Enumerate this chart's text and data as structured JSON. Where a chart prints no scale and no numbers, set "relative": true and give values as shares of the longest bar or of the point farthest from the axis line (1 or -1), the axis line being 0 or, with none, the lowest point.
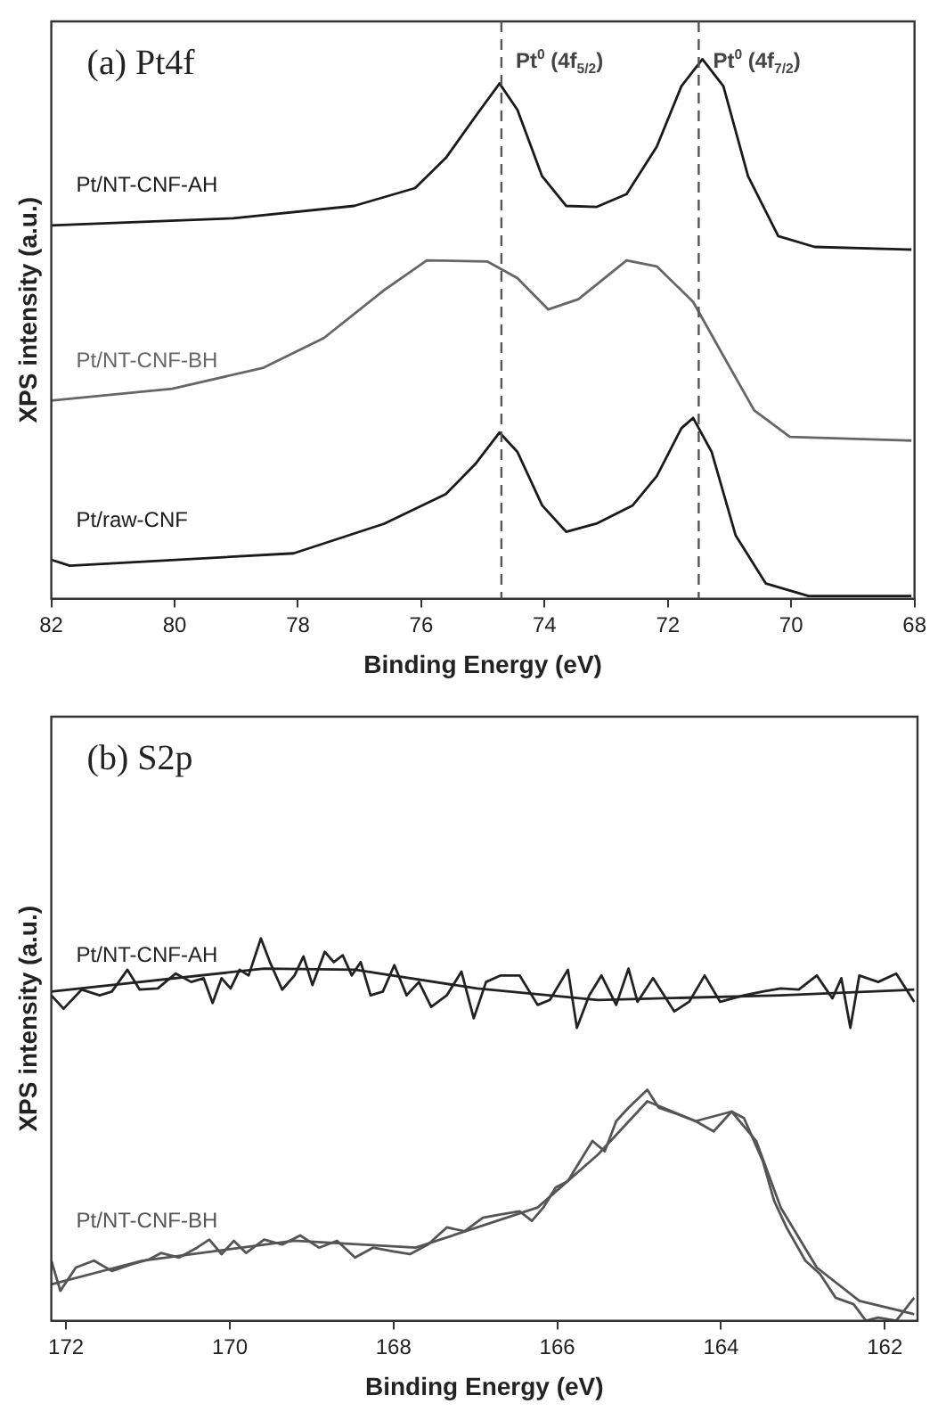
{
  "chart_data": [
    {
      "type": "line",
      "title": "(a) Pt4f",
      "xlabel": "Binding Energy (eV)",
      "ylabel": "XPS intensity (a.u.)",
      "relative": true,
      "xlim": [
        82,
        68
      ],
      "xticks": [
        82,
        80,
        78,
        76,
        74,
        72,
        70,
        68
      ],
      "grid": false,
      "legend": false,
      "marker": "none",
      "ref_lines": [
        {
          "axis": "x",
          "value": 74.7,
          "label": "Pt$^{0}$ (4f$_{5/2}$)",
          "line_style": "dashed",
          "color": "#555555"
        },
        {
          "axis": "x",
          "value": 71.5,
          "label": "Pt$^{0}$ (4f$_{7/2}$)",
          "line_style": "dashed",
          "color": "#555555"
        }
      ],
      "series": [
        {
          "name": "Pt/NT-CNF-AH",
          "color": "#1a1a1a",
          "x": [
            82,
            79.05,
            77.09,
            76.1,
            75.6,
            75.12,
            74.73,
            74.44,
            74.04,
            73.65,
            73.16,
            72.67,
            72.18,
            71.78,
            71.44,
            71.1,
            70.7,
            70.21,
            69.62,
            68.05
          ],
          "values": [
            0.692,
            0.705,
            0.728,
            0.761,
            0.817,
            0.894,
            0.955,
            0.906,
            0.783,
            0.728,
            0.726,
            0.75,
            0.838,
            0.95,
            1,
            0.95,
            0.783,
            0.672,
            0.652,
            0.647
          ]
        },
        {
          "name": "Pt/NT-CNF-BH",
          "color": "#666666",
          "x": [
            82,
            80.04,
            78.56,
            77.58,
            76.6,
            75.91,
            74.93,
            74.44,
            73.94,
            73.45,
            72.67,
            72.18,
            71.59,
            71.1,
            70.6,
            70.02,
            68.05
          ],
          "values": [
            0.367,
            0.389,
            0.428,
            0.483,
            0.572,
            0.627,
            0.625,
            0.594,
            0.536,
            0.555,
            0.627,
            0.616,
            0.55,
            0.45,
            0.349,
            0.3,
            0.293
          ]
        },
        {
          "name": "Pt/raw-CNF",
          "color": "#1a1a1a",
          "x": [
            82,
            81.7,
            78.07,
            76.6,
            75.6,
            75.12,
            74.73,
            74.44,
            74.04,
            73.65,
            73.16,
            72.57,
            72.18,
            71.78,
            71.59,
            71.29,
            70.9,
            70.41,
            69.72,
            68.05
          ],
          "values": [
            0.072,
            0.061,
            0.084,
            0.139,
            0.194,
            0.25,
            0.308,
            0.272,
            0.173,
            0.124,
            0.139,
            0.173,
            0.227,
            0.316,
            0.335,
            0.272,
            0.117,
            0.028,
            0.005,
            0.005
          ]
        }
      ]
    },
    {
      "type": "line",
      "title": "(b) S2p",
      "xlabel": "Binding Energy (eV)",
      "ylabel": "XPS intensity (a.u.)",
      "relative": true,
      "xlim": [
        172.18,
        161.6
      ],
      "xticks": [
        172,
        170,
        168,
        166,
        164,
        162
      ],
      "grid": false,
      "legend": false,
      "marker": "none",
      "series": [
        {
          "name": "Pt/NT-CNF-AH",
          "color": "#222222",
          "x": [
            172.18,
            172.03,
            171.81,
            171.59,
            171.44,
            171.25,
            171.1,
            170.88,
            170.66,
            170.47,
            170.32,
            170.21,
            170.1,
            169.99,
            169.88,
            169.77,
            169.62,
            169.51,
            169.36,
            169.21,
            169.1,
            168.99,
            168.84,
            168.73,
            168.62,
            168.51,
            168.4,
            168.28,
            168.13,
            167.99,
            167.84,
            167.69,
            167.54,
            167.35,
            167.17,
            167.02,
            166.87,
            166.69,
            166.46,
            166.24,
            166.09,
            165.87,
            165.76,
            165.61,
            165.46,
            165.28,
            165.13,
            165.02,
            164.83,
            164.57,
            164.39,
            164.2,
            164.01,
            163.72,
            163.49,
            163.27,
            163.05,
            162.83,
            162.64,
            162.53,
            162.42,
            162.31,
            162.08,
            161.86,
            161.64
          ],
          "values": [
            0.851,
            0.816,
            0.866,
            0.851,
            0.861,
            0.918,
            0.866,
            0.869,
            0.908,
            0.886,
            0.896,
            0.831,
            0.896,
            0.869,
            0.918,
            0.903,
            1,
            0.938,
            0.866,
            0.903,
            0.953,
            0.878,
            0.965,
            0.938,
            0.956,
            0.903,
            0.938,
            0.851,
            0.861,
            0.93,
            0.851,
            0.886,
            0.821,
            0.851,
            0.913,
            0.791,
            0.886,
            0.903,
            0.903,
            0.826,
            0.839,
            0.918,
            0.766,
            0.851,
            0.903,
            0.826,
            0.921,
            0.834,
            0.896,
            0.809,
            0.834,
            0.903,
            0.834,
            0.851,
            0.861,
            0.869,
            0.866,
            0.903,
            0.843,
            0.896,
            0.766,
            0.903,
            0.886,
            0.908,
            0.834
          ]
        },
        {
          "color": "#222222",
          "x": [
            172.18,
            169.58,
            168.47,
            166.98,
            165.5,
            163.27,
            161.64
          ],
          "values": [
            0.861,
            0.921,
            0.918,
            0.869,
            0.839,
            0.851,
            0.866
          ]
        },
        {
          "name": "Pt/NT-CNF-BH",
          "color": "#555555",
          "x": [
            172.18,
            172.07,
            171.88,
            171.66,
            171.44,
            171.21,
            170.99,
            170.84,
            170.62,
            170.4,
            170.25,
            170.1,
            169.95,
            169.8,
            169.58,
            169.36,
            169.14,
            168.91,
            168.69,
            168.47,
            168.25,
            168.02,
            167.8,
            167.58,
            167.35,
            167.13,
            166.91,
            166.69,
            166.46,
            166.31,
            166.17,
            166.02,
            165.87,
            165.72,
            165.57,
            165.42,
            165.28,
            165.13,
            164.9,
            164.76,
            164.53,
            164.31,
            164.09,
            163.87,
            163.72,
            163.49,
            163.35,
            163.2,
            162.97,
            162.79,
            162.6,
            162.38,
            162.23,
            162.08,
            161.86,
            161.64
          ],
          "values": [
            0.157,
            0.078,
            0.139,
            0.157,
            0.13,
            0.147,
            0.16,
            0.177,
            0.165,
            0.191,
            0.212,
            0.174,
            0.209,
            0.177,
            0.212,
            0.199,
            0.223,
            0.191,
            0.209,
            0.165,
            0.191,
            0.182,
            0.174,
            0.199,
            0.244,
            0.234,
            0.269,
            0.278,
            0.286,
            0.261,
            0.296,
            0.348,
            0.365,
            0.418,
            0.47,
            0.443,
            0.522,
            0.557,
            0.604,
            0.557,
            0.54,
            0.522,
            0.495,
            0.547,
            0.53,
            0.418,
            0.313,
            0.244,
            0.157,
            0.122,
            0.06,
            0.043,
            0,
            0.008,
            0,
            0.06
          ]
        },
        {
          "color": "#555555",
          "x": [
            172.18,
            171.07,
            169.21,
            167.73,
            166.24,
            165.5,
            164.9,
            164.31,
            163.87,
            163.57,
            163.27,
            162.83,
            162.31,
            161.64
          ],
          "values": [
            0.095,
            0.157,
            0.209,
            0.191,
            0.296,
            0.435,
            0.574,
            0.522,
            0.547,
            0.47,
            0.296,
            0.139,
            0.052,
            0.017
          ]
        }
      ]
    }
  ]
}
